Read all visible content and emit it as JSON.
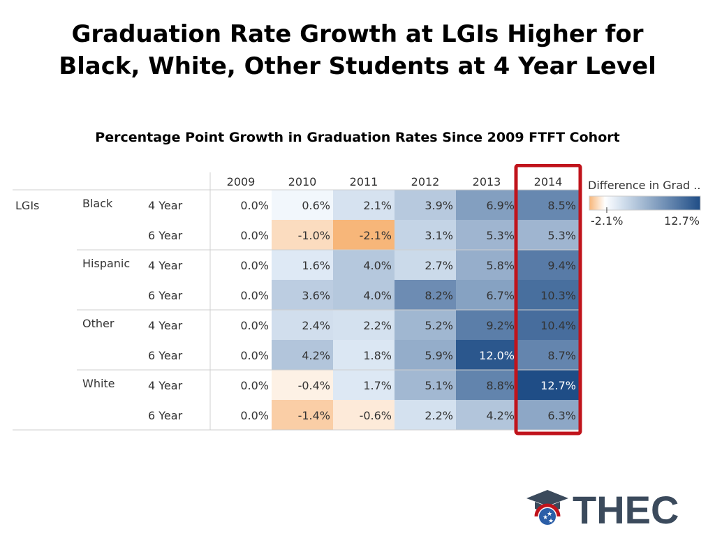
{
  "title_line1": "Graduation Rate Growth at LGIs Higher for",
  "title_line2": "Black, White, Other Students at 4 Year Level",
  "subtitle": "Percentage Point Growth in Graduation Rates Since 2009 FTFT Cohort",
  "logo_text": "THEC",
  "colors": {
    "highlight": "#c0131b",
    "neg": "#f7b679",
    "pos_light": "#e4eef8",
    "pos_dark": "#1f4d86"
  },
  "chart_data": {
    "type": "heatmap",
    "columns": [
      "2009",
      "2010",
      "2011",
      "2012",
      "2013",
      "2014"
    ],
    "group_label": "LGIs",
    "rows": [
      {
        "race": "Black",
        "level": "4 Year",
        "values": [
          0.0,
          0.6,
          2.1,
          3.9,
          6.9,
          8.5
        ]
      },
      {
        "race": "",
        "level": "6 Year",
        "values": [
          0.0,
          -1.0,
          -2.1,
          3.1,
          5.3,
          5.3
        ]
      },
      {
        "race": "Hispanic",
        "level": "4 Year",
        "values": [
          0.0,
          1.6,
          4.0,
          2.7,
          5.8,
          9.4
        ]
      },
      {
        "race": "",
        "level": "6 Year",
        "values": [
          0.0,
          3.6,
          4.0,
          8.2,
          6.7,
          10.3
        ]
      },
      {
        "race": "Other",
        "level": "4 Year",
        "values": [
          0.0,
          2.4,
          2.2,
          5.2,
          9.2,
          10.4
        ]
      },
      {
        "race": "",
        "level": "6 Year",
        "values": [
          0.0,
          4.2,
          1.8,
          5.9,
          12.0,
          8.7
        ]
      },
      {
        "race": "White",
        "level": "4 Year",
        "values": [
          0.0,
          -0.4,
          1.7,
          5.1,
          8.8,
          12.7
        ]
      },
      {
        "race": "",
        "level": "6 Year",
        "values": [
          0.0,
          -1.4,
          -0.6,
          2.2,
          4.2,
          6.3
        ]
      }
    ],
    "highlighted_column": "2014",
    "legend": {
      "title": "Difference in Grad ..",
      "min_label": "-2.1%",
      "max_label": "12.7%",
      "min": -2.1,
      "max": 12.7
    }
  }
}
